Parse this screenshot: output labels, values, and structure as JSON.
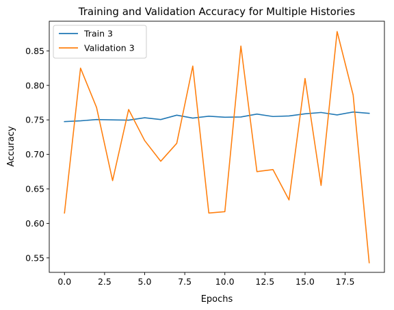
{
  "chart_data": {
    "type": "line",
    "title": "Training and Validation Accuracy for Multiple Histories",
    "xlabel": "Epochs",
    "ylabel": "Accuracy",
    "xlim": [
      -0.95,
      19.95
    ],
    "ylim": [
      0.529,
      0.893
    ],
    "xticks": [
      0.0,
      2.5,
      5.0,
      7.5,
      10.0,
      12.5,
      15.0,
      17.5
    ],
    "xtick_labels": [
      "0.0",
      "2.5",
      "5.0",
      "7.5",
      "10.0",
      "12.5",
      "15.0",
      "17.5"
    ],
    "yticks": [
      0.55,
      0.6,
      0.65,
      0.7,
      0.75,
      0.8,
      0.85
    ],
    "ytick_labels": [
      "0.55",
      "0.60",
      "0.65",
      "0.70",
      "0.75",
      "0.80",
      "0.85"
    ],
    "grid": false,
    "legend_position": "top-left",
    "x": [
      0,
      1,
      2,
      3,
      4,
      5,
      6,
      7,
      8,
      9,
      10,
      11,
      12,
      13,
      14,
      15,
      16,
      17,
      18,
      19
    ],
    "series": [
      {
        "name": "Train 3",
        "color": "#1f77b4",
        "values": [
          0.7475,
          0.7486,
          0.7505,
          0.75,
          0.7496,
          0.7531,
          0.7505,
          0.7568,
          0.7526,
          0.7553,
          0.7538,
          0.7542,
          0.7584,
          0.7549,
          0.7557,
          0.7588,
          0.7607,
          0.7572,
          0.7614,
          0.7595
        ]
      },
      {
        "name": "Validation 3",
        "color": "#ff7f0e",
        "values": [
          0.615,
          0.825,
          0.768,
          0.662,
          0.765,
          0.72,
          0.69,
          0.716,
          0.828,
          0.615,
          0.617,
          0.857,
          0.675,
          0.678,
          0.634,
          0.81,
          0.655,
          0.878,
          0.786,
          0.543
        ]
      }
    ]
  }
}
